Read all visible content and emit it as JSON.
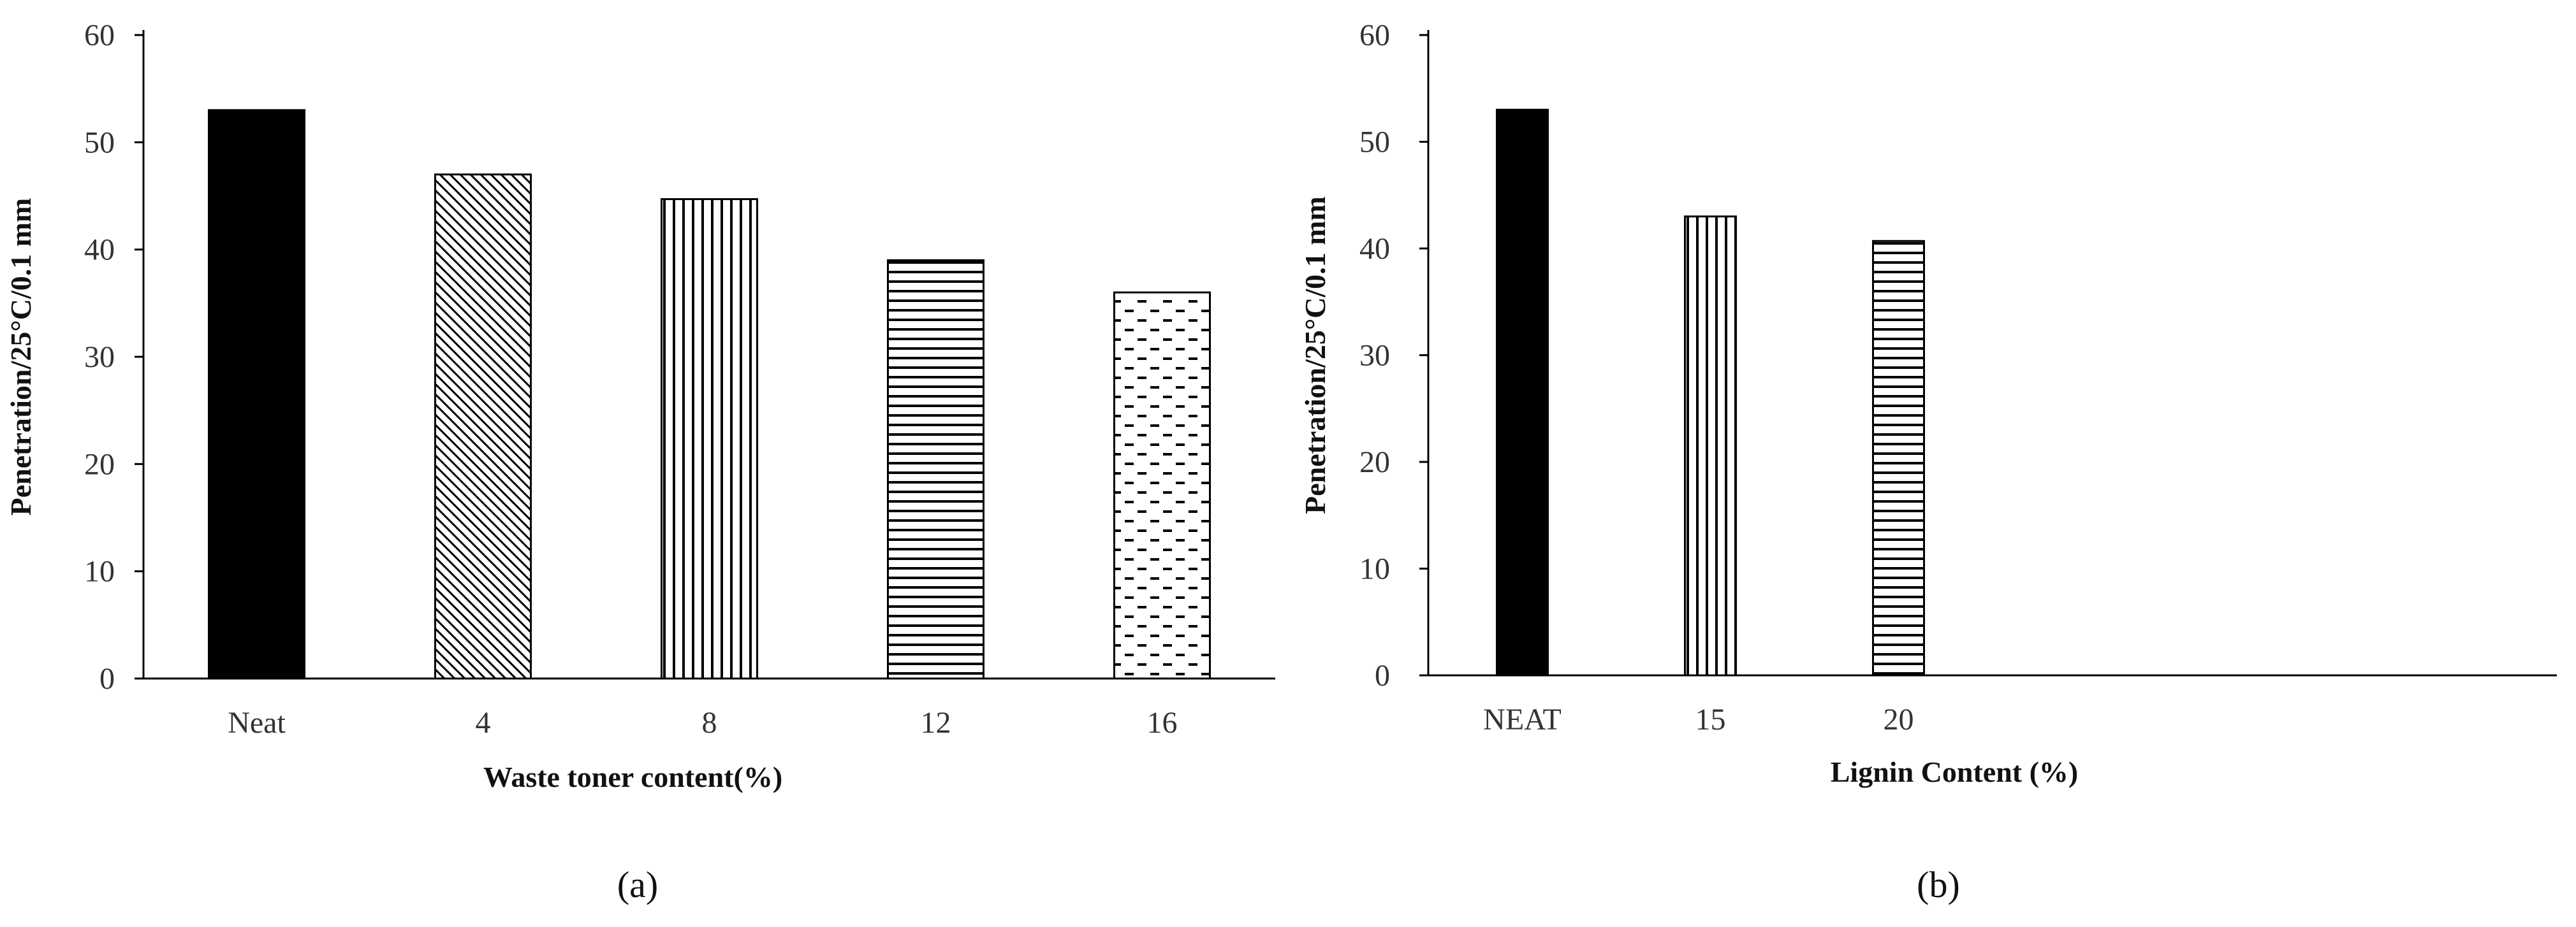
{
  "chart_data": [
    {
      "type": "bar",
      "panel_label": "(a)",
      "categories": [
        "Neat",
        "4",
        "8",
        "12",
        "16"
      ],
      "values": [
        53,
        47,
        44.7,
        39,
        36
      ],
      "xlabel": "Waste toner content(%)",
      "ylabel": "Penetration/25°C/0.1  mm",
      "ylim": [
        0,
        60
      ],
      "yticks": [
        "0",
        "10",
        "20",
        "30",
        "40",
        "50",
        "60"
      ],
      "grid": false,
      "legend": "none",
      "bar_fills": [
        "solid",
        "diagonal-hatch",
        "vertical-lines",
        "horizontal-lines",
        "dashed-dots"
      ]
    },
    {
      "type": "bar",
      "panel_label": "(b)",
      "categories": [
        "NEAT",
        "15",
        "20"
      ],
      "values": [
        53,
        43,
        40.7
      ],
      "xlabel": "Lignin Content (%)",
      "ylabel": "Penetration/25°C/0.1  mm",
      "ylim": [
        0,
        60
      ],
      "yticks": [
        "0",
        "10",
        "20",
        "30",
        "40",
        "50",
        "60"
      ],
      "grid": false,
      "legend": "none",
      "bar_fills": [
        "solid",
        "vertical-lines",
        "horizontal-lines"
      ]
    }
  ],
  "colors": {
    "axis": "#000000",
    "bar_stroke": "#000000",
    "bar_solid": "#000000",
    "tick_text": "#333333"
  }
}
